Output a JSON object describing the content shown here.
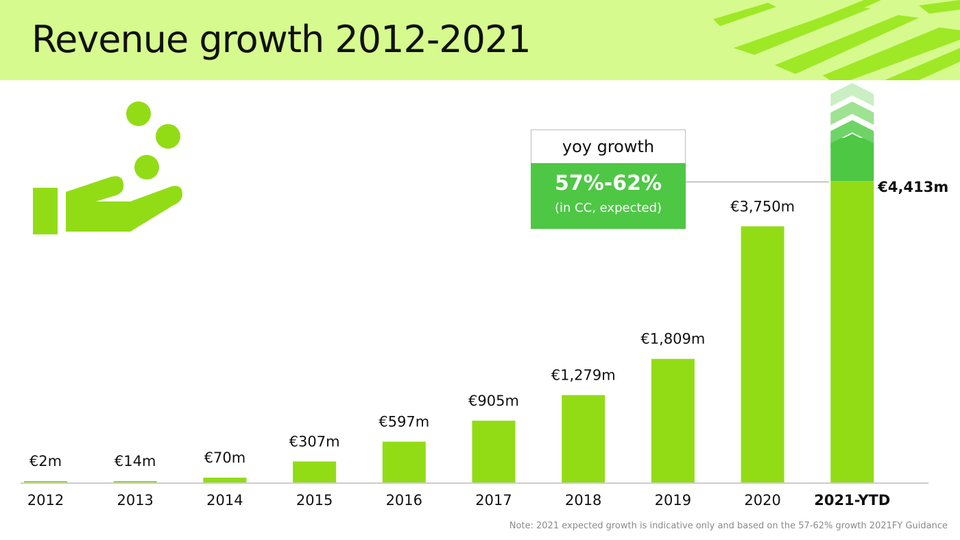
{
  "header": {
    "title": "Revenue growth 2012-2021"
  },
  "callout": {
    "heading": "yoy growth",
    "value": "57%-62%",
    "subtext": "(in CC, expected)"
  },
  "note": "Note: 2021 expected growth is indicative only and based on the 57-62% growth 2021FY Guidance",
  "colors": {
    "bar": "#92dc16",
    "growth": "#4ec745",
    "header_bg": "#d6fa8e",
    "accent_brush": "#9fe826"
  },
  "chart_data": {
    "type": "bar",
    "categories": [
      "2012",
      "2013",
      "2014",
      "2015",
      "2016",
      "2017",
      "2018",
      "2019",
      "2020",
      "2021-YTD"
    ],
    "values": [
      2,
      14,
      70,
      307,
      597,
      905,
      1279,
      1809,
      3750,
      4413
    ],
    "labels": [
      "€2m",
      "€14m",
      "€70m",
      "€307m",
      "€597m",
      "€905m",
      "€1,279m",
      "€1,809m",
      "€3,750m",
      "€4,413m"
    ],
    "unit": "€m",
    "ylim": [
      0,
      5900
    ],
    "title": "",
    "xlabel": "",
    "ylabel": "",
    "highlight_category": "2021-YTD",
    "expected_growth_range_pct": [
      57,
      62
    ],
    "grid": false
  }
}
